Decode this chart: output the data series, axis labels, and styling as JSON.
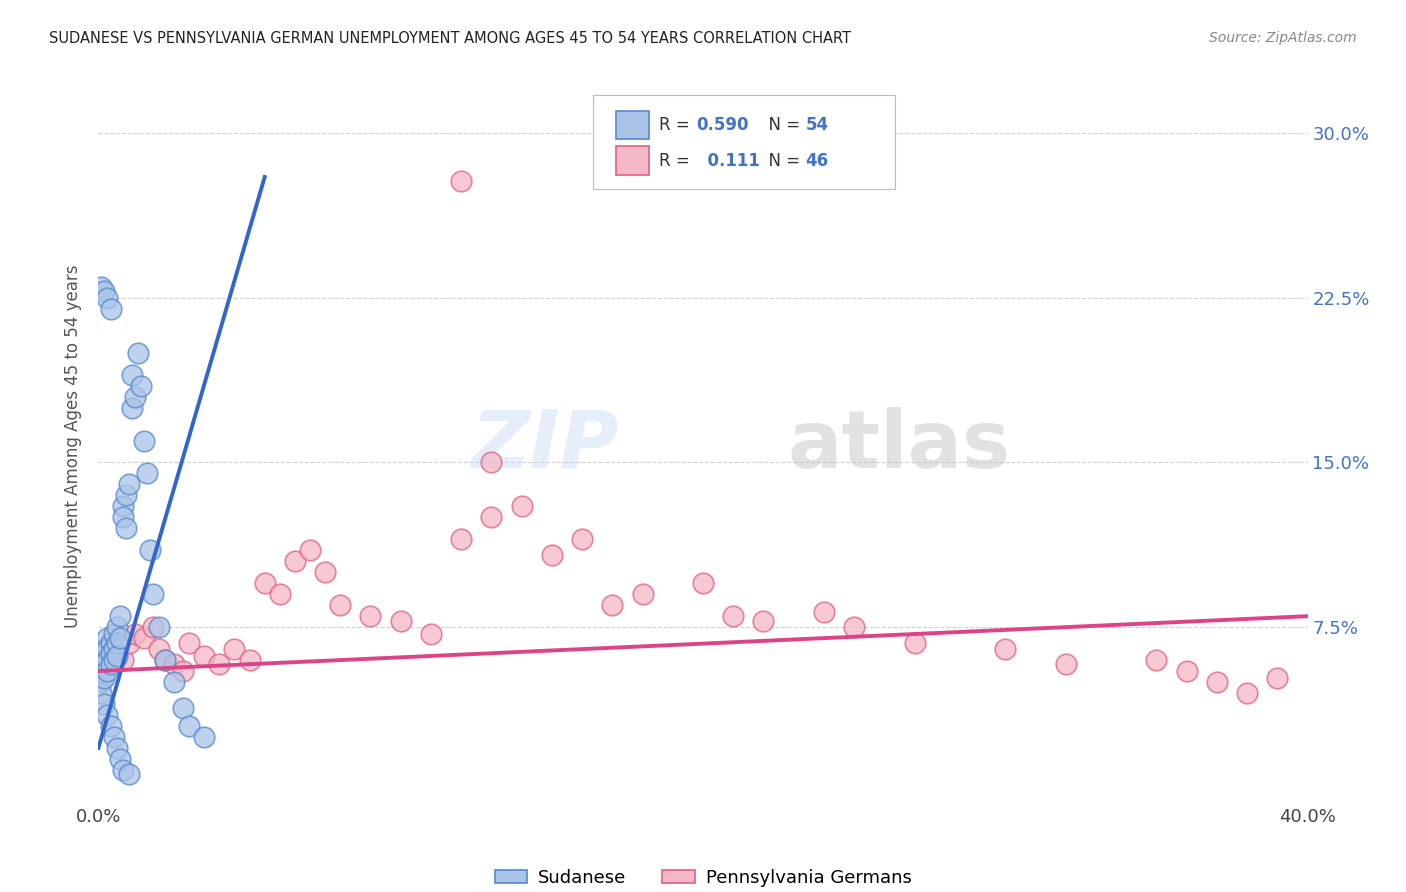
{
  "title": "SUDANESE VS PENNSYLVANIA GERMAN UNEMPLOYMENT AMONG AGES 45 TO 54 YEARS CORRELATION CHART",
  "source": "Source: ZipAtlas.com",
  "ylabel": "Unemployment Among Ages 45 to 54 years",
  "xlim": [
    0.0,
    0.4
  ],
  "ylim": [
    -0.005,
    0.32
  ],
  "ytick_vals": [
    0.075,
    0.15,
    0.225,
    0.3
  ],
  "ytick_labels": [
    "7.5%",
    "15.0%",
    "22.5%",
    "30.0%"
  ],
  "sudanese_color": "#aac4e8",
  "sudanese_edge_color": "#5588cc",
  "pa_german_color": "#f4b8c8",
  "pa_german_edge_color": "#e06080",
  "sudanese_line_color": "#3366cc",
  "pa_german_line_color": "#dd4488",
  "background_color": "#ffffff",
  "grid_color": "#cccccc",
  "sudanese_x": [
    0.001,
    0.001,
    0.001,
    0.002,
    0.002,
    0.002,
    0.002,
    0.002,
    0.003,
    0.003,
    0.003,
    0.003,
    0.003,
    0.004,
    0.004,
    0.004,
    0.004,
    0.005,
    0.005,
    0.005,
    0.005,
    0.006,
    0.006,
    0.006,
    0.006,
    0.007,
    0.007,
    0.007,
    0.008,
    0.008,
    0.008,
    0.009,
    0.009,
    0.01,
    0.01,
    0.011,
    0.011,
    0.012,
    0.013,
    0.014,
    0.015,
    0.016,
    0.017,
    0.018,
    0.02,
    0.022,
    0.025,
    0.028,
    0.03,
    0.035,
    0.001,
    0.002,
    0.003,
    0.004
  ],
  "sudanese_y": [
    0.055,
    0.05,
    0.045,
    0.065,
    0.06,
    0.058,
    0.052,
    0.04,
    0.07,
    0.065,
    0.06,
    0.055,
    0.035,
    0.068,
    0.063,
    0.058,
    0.03,
    0.072,
    0.065,
    0.06,
    0.025,
    0.075,
    0.068,
    0.062,
    0.02,
    0.08,
    0.07,
    0.015,
    0.13,
    0.125,
    0.01,
    0.135,
    0.12,
    0.14,
    0.008,
    0.175,
    0.19,
    0.18,
    0.2,
    0.185,
    0.16,
    0.145,
    0.11,
    0.09,
    0.075,
    0.06,
    0.05,
    0.038,
    0.03,
    0.025,
    0.23,
    0.228,
    0.225,
    0.22
  ],
  "pa_german_x": [
    0.005,
    0.008,
    0.01,
    0.012,
    0.015,
    0.018,
    0.02,
    0.022,
    0.025,
    0.028,
    0.03,
    0.035,
    0.04,
    0.045,
    0.05,
    0.055,
    0.06,
    0.065,
    0.07,
    0.075,
    0.08,
    0.09,
    0.1,
    0.11,
    0.12,
    0.13,
    0.14,
    0.15,
    0.16,
    0.17,
    0.18,
    0.2,
    0.21,
    0.22,
    0.24,
    0.25,
    0.27,
    0.3,
    0.32,
    0.35,
    0.36,
    0.37,
    0.38,
    0.39,
    0.12,
    0.13
  ],
  "pa_german_y": [
    0.065,
    0.06,
    0.068,
    0.072,
    0.07,
    0.075,
    0.065,
    0.06,
    0.058,
    0.055,
    0.068,
    0.062,
    0.058,
    0.065,
    0.06,
    0.095,
    0.09,
    0.105,
    0.11,
    0.1,
    0.085,
    0.08,
    0.078,
    0.072,
    0.115,
    0.125,
    0.13,
    0.108,
    0.115,
    0.085,
    0.09,
    0.095,
    0.08,
    0.078,
    0.082,
    0.075,
    0.068,
    0.065,
    0.058,
    0.06,
    0.055,
    0.05,
    0.045,
    0.052,
    0.278,
    0.15
  ],
  "sud_line_x": [
    0.0,
    0.055
  ],
  "sud_line_y": [
    0.02,
    0.28
  ],
  "pag_line_x": [
    0.0,
    0.4
  ],
  "pag_line_y": [
    0.055,
    0.08
  ]
}
